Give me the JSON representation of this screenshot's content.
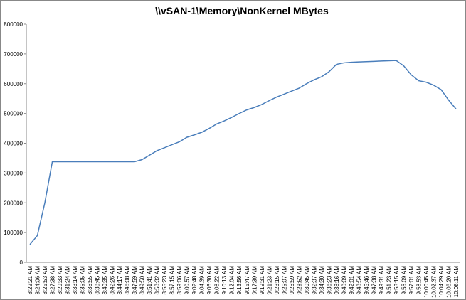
{
  "chart_data": {
    "type": "line",
    "title": "\\\\vSAN-1\\Memory\\NonKernel MBytes",
    "categories": [
      "8:22:21 AM",
      "8:24:06 AM",
      "8:25:53 AM",
      "8:27:38 AM",
      "8:29:33 AM",
      "8:31:24 AM",
      "8:33:14 AM",
      "8:35:05 AM",
      "8:36:55 AM",
      "8:38:45 AM",
      "8:40:35 AM",
      "8:42:26 AM",
      "8:44:17 AM",
      "8:46:08 AM",
      "8:47:59 AM",
      "8:49:50 AM",
      "8:51:41 AM",
      "8:53:32 AM",
      "8:55:23 AM",
      "8:57:15 AM",
      "8:59:06 AM",
      "9:00:57 AM",
      "9:02:48 AM",
      "9:04:39 AM",
      "9:06:30 AM",
      "9:08:22 AM",
      "9:10:13 AM",
      "9:12:04 AM",
      "9:13:56 AM",
      "9:15:47 AM",
      "9:17:39 AM",
      "9:19:31 AM",
      "9:21:23 AM",
      "9:23:15 AM",
      "9:25:07 AM",
      "9:26:59 AM",
      "9:28:52 AM",
      "9:30:45 AM",
      "9:32:37 AM",
      "9:34:30 AM",
      "9:36:23 AM",
      "9:38:16 AM",
      "9:40:09 AM",
      "9:42:01 AM",
      "9:43:54 AM",
      "9:45:46 AM",
      "9:47:38 AM",
      "9:49:31 AM",
      "9:51:23 AM",
      "9:53:15 AM",
      "9:55:09 AM",
      "9:57:01 AM",
      "9:58:53 AM",
      "10:00:45 AM",
      "10:02:37 AM",
      "10:04:29 AM",
      "10:06:20 AM",
      "10:08:11 AM"
    ],
    "series": [
      {
        "name": "\\\\vSAN-1\\Memory\\NonKernel MBytes",
        "color": "#4a7ebb",
        "values": [
          60000,
          90000,
          200000,
          338000,
          338000,
          338000,
          338000,
          338000,
          338000,
          338000,
          338000,
          338000,
          338000,
          338000,
          338000,
          345000,
          360000,
          375000,
          385000,
          395000,
          405000,
          420000,
          428000,
          437000,
          450000,
          465000,
          475000,
          487000,
          500000,
          512000,
          520000,
          530000,
          543000,
          555000,
          565000,
          575000,
          585000,
          600000,
          613000,
          623000,
          640000,
          665000,
          670000,
          672000,
          673000,
          674000,
          675000,
          676000,
          677000,
          678000,
          660000,
          630000,
          610000,
          605000,
          595000,
          580000,
          545000,
          515000
        ]
      }
    ],
    "ylim": [
      0,
      800000
    ],
    "yticks": [
      0,
      100000,
      200000,
      300000,
      400000,
      500000,
      600000,
      700000,
      800000
    ],
    "grid": false
  }
}
